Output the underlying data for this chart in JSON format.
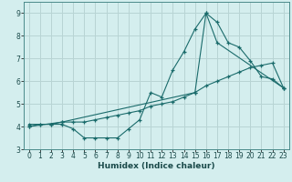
{
  "title": "",
  "xlabel": "Humidex (Indice chaleur)",
  "bg_color": "#d4eeee",
  "grid_color": "#b8d4d4",
  "line_color": "#1a6b6b",
  "xlim": [
    -0.5,
    23.5
  ],
  "ylim": [
    3.0,
    9.5
  ],
  "xticks": [
    0,
    1,
    2,
    3,
    4,
    5,
    6,
    7,
    8,
    9,
    10,
    11,
    12,
    13,
    14,
    15,
    16,
    17,
    18,
    19,
    20,
    21,
    22,
    23
  ],
  "yticks": [
    3,
    4,
    5,
    6,
    7,
    8,
    9
  ],
  "series1_x": [
    0,
    1,
    2,
    3,
    4,
    5,
    6,
    7,
    8,
    9,
    10,
    11,
    12,
    13,
    14,
    15,
    16,
    17,
    18,
    19,
    20,
    21,
    22,
    23
  ],
  "series1_y": [
    4.1,
    4.1,
    4.1,
    4.1,
    3.9,
    3.5,
    3.5,
    3.5,
    3.5,
    3.9,
    4.3,
    5.5,
    5.3,
    6.5,
    7.3,
    8.3,
    9.0,
    8.6,
    7.7,
    7.5,
    6.9,
    6.2,
    6.1,
    5.7
  ],
  "series2_x": [
    0,
    1,
    2,
    3,
    4,
    5,
    6,
    7,
    8,
    9,
    10,
    11,
    12,
    13,
    14,
    15,
    16,
    17,
    18,
    19,
    20,
    21,
    22,
    23
  ],
  "series2_y": [
    4.0,
    4.1,
    4.1,
    4.2,
    4.2,
    4.2,
    4.3,
    4.4,
    4.5,
    4.6,
    4.7,
    4.9,
    5.0,
    5.1,
    5.3,
    5.5,
    5.8,
    6.0,
    6.2,
    6.4,
    6.6,
    6.7,
    6.8,
    5.7
  ],
  "series3_x": [
    0,
    3,
    15,
    16,
    17,
    23
  ],
  "series3_y": [
    4.0,
    4.2,
    5.5,
    9.0,
    7.7,
    5.7
  ],
  "tick_fontsize": 5.5,
  "xlabel_fontsize": 6.5
}
